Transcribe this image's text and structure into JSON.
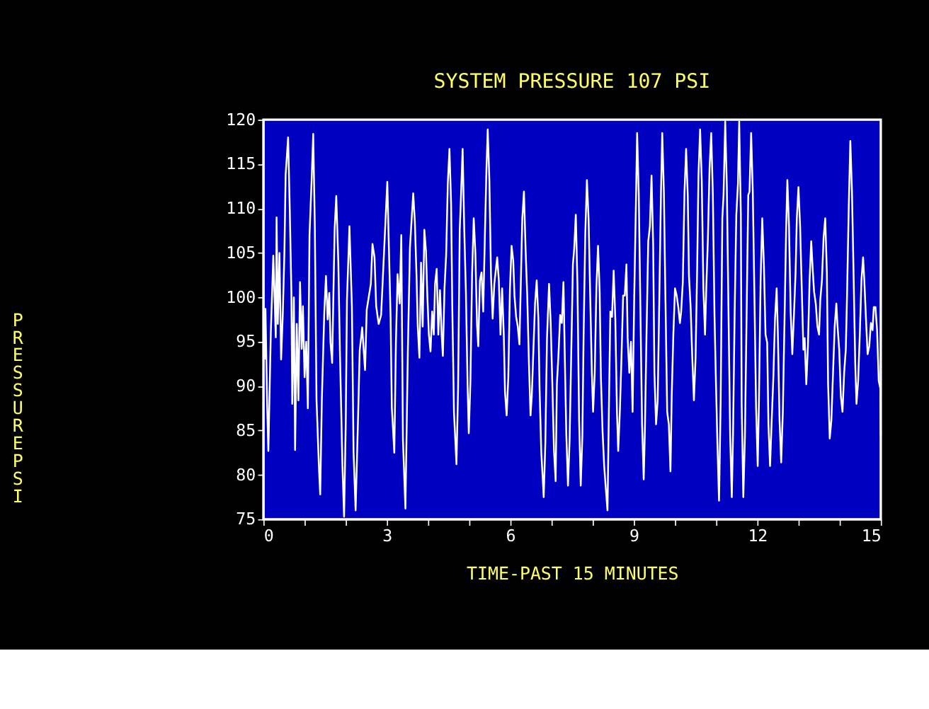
{
  "chart_data": {
    "type": "line",
    "title": "SYSTEM PRESSURE 107 PSI",
    "xlabel": "TIME-PAST 15 MINUTES",
    "ylabel": "PRESSURE PSI",
    "color": "#ffffff",
    "grid": false,
    "xlim": [
      0,
      15
    ],
    "ylim": [
      75,
      120
    ],
    "xticks": [
      0,
      {
        "value": 1,
        "label": null
      },
      {
        "value": 2,
        "label": null
      },
      3,
      {
        "value": 4,
        "label": null
      },
      {
        "value": 5,
        "label": null
      },
      6,
      {
        "value": 7,
        "label": null
      },
      {
        "value": 8,
        "label": null
      },
      9,
      {
        "value": 10,
        "label": null
      },
      {
        "value": 11,
        "label": null
      },
      12,
      {
        "value": 13,
        "label": null
      },
      {
        "value": 14,
        "label": null
      },
      15
    ],
    "yticks": [
      75,
      80,
      85,
      90,
      95,
      100,
      105,
      110,
      115,
      120
    ],
    "x": [
      0.03,
      0.05,
      0.09,
      0.12,
      0.18,
      0.24,
      0.3,
      0.32,
      0.35,
      0.39,
      0.43,
      0.47,
      0.51,
      0.54,
      0.6,
      0.64,
      0.68,
      0.7,
      0.74,
      0.77,
      0.81,
      0.85,
      0.89,
      0.93,
      0.96,
      1.0,
      1.04,
      1.08,
      1.12,
      1.17,
      1.21,
      1.25,
      1.29,
      1.35,
      1.38,
      1.42,
      1.48,
      1.52,
      1.56,
      1.6,
      1.63,
      1.67,
      1.73,
      1.77,
      1.82,
      1.86,
      1.92,
      1.96,
      2.0,
      2.03,
      2.09,
      2.15,
      2.19,
      2.24,
      2.3,
      2.34,
      2.4,
      2.44,
      2.47,
      2.51,
      2.61,
      2.65,
      2.7,
      2.74,
      2.8,
      2.86,
      3.01,
      3.09,
      3.12,
      3.18,
      3.22,
      3.26,
      3.31,
      3.35,
      3.39,
      3.45,
      3.51,
      3.56,
      3.64,
      3.68,
      3.72,
      3.75,
      3.79,
      3.83,
      3.87,
      3.91,
      3.95,
      3.98,
      4.02,
      4.06,
      4.1,
      4.14,
      4.17,
      4.21,
      4.25,
      4.29,
      4.33,
      4.36,
      4.4,
      4.44,
      4.48,
      4.52,
      4.56,
      4.59,
      4.63,
      4.69,
      4.73,
      4.77,
      4.8,
      4.84,
      4.88,
      4.92,
      4.96,
      4.99,
      5.03,
      5.07,
      5.11,
      5.15,
      5.19,
      5.22,
      5.26,
      5.3,
      5.34,
      5.38,
      5.42,
      5.45,
      5.49,
      5.53,
      5.57,
      5.61,
      5.65,
      5.68,
      5.72,
      5.76,
      5.8,
      5.84,
      5.87,
      5.91,
      5.95,
      5.99,
      6.03,
      6.07,
      6.1,
      6.14,
      6.18,
      6.22,
      6.26,
      6.29,
      6.33,
      6.37,
      6.41,
      6.45,
      6.49,
      6.52,
      6.56,
      6.6,
      6.64,
      6.68,
      6.71,
      6.75,
      6.81,
      6.85,
      6.89,
      6.94,
      6.98,
      7.02,
      7.06,
      7.1,
      7.13,
      7.17,
      7.21,
      7.25,
      7.29,
      7.33,
      7.36,
      7.4,
      7.44,
      7.48,
      7.52,
      7.55,
      7.59,
      7.63,
      7.67,
      7.71,
      7.75,
      7.78,
      7.82,
      7.86,
      7.9,
      7.94,
      7.98,
      8.01,
      8.05,
      8.09,
      8.13,
      8.17,
      8.2,
      8.24,
      8.28,
      8.32,
      8.36,
      8.4,
      8.43,
      8.47,
      8.51,
      8.55,
      8.59,
      8.62,
      8.66,
      8.7,
      8.74,
      8.78,
      8.82,
      8.85,
      8.89,
      8.93,
      8.97,
      9.01,
      9.05,
      9.08,
      9.12,
      9.16,
      9.2,
      9.24,
      9.27,
      9.31,
      9.35,
      9.39,
      9.43,
      9.47,
      9.5,
      9.54,
      9.58,
      9.62,
      9.66,
      9.69,
      9.73,
      9.77,
      9.81,
      9.85,
      9.89,
      9.92,
      9.96,
      10.0,
      10.04,
      10.08,
      10.12,
      10.15,
      10.19,
      10.23,
      10.27,
      10.31,
      10.34,
      10.38,
      10.42,
      10.46,
      10.5,
      10.54,
      10.57,
      10.61,
      10.65,
      10.69,
      10.73,
      10.76,
      10.8,
      10.84,
      10.88,
      10.92,
      10.96,
      10.99,
      11.03,
      11.07,
      11.11,
      11.15,
      11.18,
      11.22,
      11.26,
      11.3,
      11.34,
      11.38,
      11.41,
      11.45,
      11.49,
      11.53,
      11.56,
      11.6,
      11.62,
      11.66,
      11.7,
      11.74,
      11.78,
      11.81,
      11.85,
      11.89,
      11.93,
      11.97,
      12.01,
      12.04,
      12.08,
      12.12,
      12.16,
      12.2,
      12.24,
      12.27,
      12.31,
      12.35,
      12.39,
      12.43,
      12.47,
      12.5,
      12.54,
      12.58,
      12.62,
      12.66,
      12.7,
      12.73,
      12.77,
      12.81,
      12.85,
      12.89,
      12.93,
      12.96,
      13.0,
      13.04,
      13.08,
      13.12,
      13.15,
      13.19,
      13.23,
      13.27,
      13.31,
      13.35,
      13.38,
      13.42,
      13.46,
      13.5,
      13.53,
      13.57,
      13.61,
      13.65,
      13.69,
      13.72,
      13.76,
      13.8,
      13.84,
      13.88,
      13.92,
      13.95,
      13.99,
      14.03,
      14.07,
      14.11,
      14.15,
      14.18,
      14.22,
      14.26,
      14.3,
      14.34,
      14.38,
      14.41,
      14.45,
      14.49,
      14.53,
      14.57,
      14.6,
      14.64,
      14.68,
      14.72,
      14.76,
      14.8,
      14.83,
      14.87,
      14.91,
      14.95,
      14.99,
      15.0
    ],
    "values": [
      93,
      98.7,
      88,
      82.7,
      96,
      104.7,
      95.5,
      109,
      97,
      105,
      93,
      98,
      105,
      113.8,
      118,
      110,
      100.5,
      88,
      100,
      82.8,
      97,
      88.4,
      101.7,
      94.2,
      99,
      91,
      95,
      87.5,
      107,
      113,
      118.4,
      107.8,
      88.5,
      80.7,
      77.8,
      88.5,
      98.4,
      102.4,
      97.5,
      100.5,
      94.9,
      92.6,
      107.6,
      111.4,
      104,
      93.7,
      81,
      75.3,
      85.6,
      99.7,
      108,
      99,
      82.6,
      76,
      86.5,
      94,
      96.6,
      93.8,
      91.8,
      98.6,
      101.5,
      106,
      104.5,
      99,
      97,
      98,
      113,
      97.8,
      87.6,
      82.5,
      95,
      102.6,
      99.3,
      107,
      84,
      76.2,
      94,
      105.6,
      111.7,
      108.5,
      102.4,
      96.7,
      93.2,
      103.9,
      96.7,
      107.6,
      105.2,
      100.6,
      95.8,
      93.9,
      98.4,
      95.8,
      101.5,
      103.2,
      95.8,
      100.8,
      95.8,
      93.4,
      101,
      104.8,
      112.8,
      116.7,
      110.6,
      98.6,
      87.1,
      81.2,
      89.7,
      107.6,
      111.3,
      116.7,
      107.6,
      100.6,
      90.2,
      84.7,
      90.6,
      102.6,
      108.9,
      105,
      96.9,
      94.5,
      101.9,
      102.8,
      98.4,
      106.7,
      114.6,
      118.9,
      113.2,
      102.4,
      97.6,
      101.5,
      103.2,
      104.5,
      101.9,
      95.8,
      101,
      95.8,
      89.3,
      86.7,
      91,
      101,
      105.8,
      104.1,
      100.2,
      97.8,
      96.7,
      94.7,
      102.8,
      108.9,
      111.9,
      105.4,
      100.2,
      92.8,
      86.7,
      88.8,
      94.1,
      99.3,
      101.9,
      97.6,
      89.7,
      82.7,
      77.5,
      83.6,
      95.4,
      101.5,
      97.1,
      90.2,
      82.7,
      79.3,
      90.2,
      93.6,
      98,
      97.1,
      101.7,
      91.5,
      84.5,
      78.8,
      84,
      93.9,
      103.7,
      105.4,
      109.3,
      101.5,
      86.2,
      78.8,
      84.5,
      95.8,
      107.1,
      113.2,
      108.9,
      100.2,
      91.5,
      87.1,
      91.5,
      101,
      105.8,
      100.6,
      91,
      84.9,
      81,
      78.4,
      76,
      89.3,
      98.4,
      97.8,
      103,
      97.6,
      87.1,
      82.7,
      87.1,
      93.2,
      100.2,
      100.2,
      103.7,
      95.4,
      91.5,
      95,
      87.1,
      100.2,
      110.4,
      118.5,
      111.5,
      98.6,
      85.7,
      79.5,
      85.3,
      96.3,
      106.3,
      108,
      113.7,
      105.8,
      91.5,
      85.7,
      88.4,
      100.2,
      111.9,
      118.5,
      111.9,
      99.3,
      87.1,
      85.7,
      80.4,
      88.8,
      95.8,
      101,
      100.2,
      98.9,
      97.1,
      98.4,
      101.7,
      111.7,
      116.7,
      111.5,
      102.4,
      98.9,
      93.2,
      88.4,
      93.2,
      103.7,
      113.7,
      118.9,
      113.2,
      101,
      95.8,
      101,
      106.7,
      114.6,
      118.5,
      111.5,
      98,
      91.5,
      83.6,
      77.1,
      88.4,
      108.9,
      111.5,
      119.8,
      112.4,
      98.4,
      84.5,
      77.5,
      84.5,
      98.4,
      109.3,
      112.8,
      119.8,
      109.3,
      88,
      77.5,
      84.5,
      98,
      111.5,
      111.9,
      118.5,
      111.9,
      100.2,
      87.6,
      81,
      88.4,
      101.9,
      108.9,
      103.7,
      95.8,
      94.9,
      85.7,
      81,
      86.2,
      91,
      97.6,
      101,
      95.8,
      86.2,
      81.4,
      87.1,
      97.1,
      107.6,
      113.2,
      108,
      98.4,
      93.6,
      98,
      102.8,
      108.9,
      112.4,
      108,
      101,
      94.1,
      95.4,
      90.2,
      94.5,
      101.9,
      106.3,
      102.8,
      100.6,
      99.3,
      96.7,
      95.8,
      99.7,
      101.9,
      106.7,
      108.9,
      102.8,
      90.2,
      84.1,
      86.2,
      91.5,
      96.7,
      99.3,
      96.7,
      94.1,
      88.8,
      87.1,
      91.5,
      94.1,
      100.2,
      109.8,
      117.6,
      111.9,
      102.4,
      92.4,
      88,
      90.6,
      95.8,
      101.9,
      104.5,
      101.9,
      97.6,
      93.6,
      94.5,
      97.1,
      96.3,
      98.9,
      98.9,
      96.3,
      90.6,
      89.7,
      84.5
    ]
  }
}
